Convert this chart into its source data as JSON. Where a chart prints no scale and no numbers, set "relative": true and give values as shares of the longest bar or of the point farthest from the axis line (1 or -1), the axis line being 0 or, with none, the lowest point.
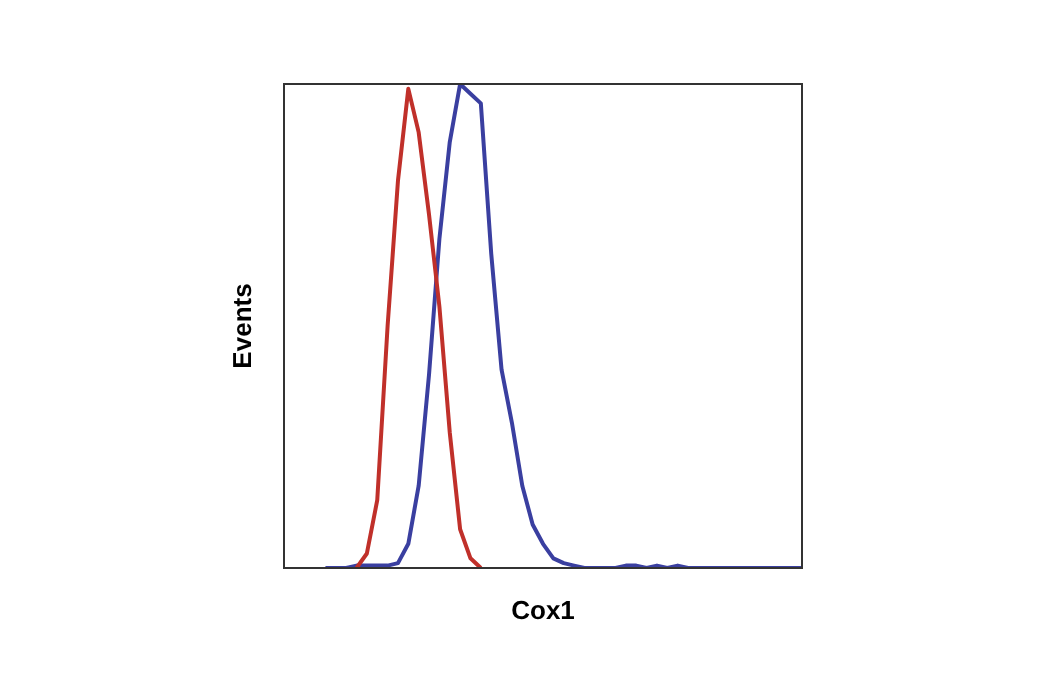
{
  "chart_data": {
    "type": "line",
    "xlabel": "Cox1",
    "ylabel": "Events",
    "relative": true,
    "legend": false,
    "marker": "none",
    "categories": [
      null,
      null,
      null,
      null,
      null,
      null,
      null,
      null,
      null,
      null,
      null,
      null,
      null,
      null,
      null,
      null,
      null,
      null,
      null,
      null,
      null,
      null,
      null,
      null,
      null,
      null,
      null,
      null,
      null,
      null,
      null,
      null,
      null,
      null,
      null,
      null,
      null,
      null,
      null,
      null,
      null,
      null,
      null,
      null,
      null,
      null,
      null,
      null,
      null,
      null,
      null
    ],
    "series": [
      {
        "color": "#c0302a",
        "values": [
          null,
          null,
          null,
          null,
          null,
          null,
          null,
          0,
          0.03,
          0.14,
          0.5,
          0.8,
          0.99,
          0.9,
          0.73,
          0.54,
          0.28,
          0.08,
          0.02,
          0,
          null,
          null,
          null,
          null,
          null,
          null,
          null,
          null,
          null,
          null,
          null,
          null,
          null,
          null,
          null,
          null,
          null,
          null,
          null,
          null,
          null,
          null,
          null,
          null,
          null,
          null,
          null,
          null,
          null,
          null,
          null
        ]
      },
      {
        "color": "#3a3fa0",
        "values": [
          null,
          null,
          null,
          null,
          0,
          0,
          0,
          0.005,
          0.005,
          0.005,
          0.005,
          0.01,
          0.05,
          0.17,
          0.4,
          0.68,
          0.88,
          1,
          0.98,
          0.96,
          0.65,
          0.41,
          0.3,
          0.17,
          0.09,
          0.05,
          0.02,
          0.01,
          0.005,
          0,
          0,
          0,
          0,
          0.005,
          0.005,
          0,
          0.005,
          0,
          0.005,
          0,
          0,
          0,
          0,
          0,
          0,
          0,
          0,
          0,
          0,
          0,
          0
        ]
      }
    ]
  }
}
